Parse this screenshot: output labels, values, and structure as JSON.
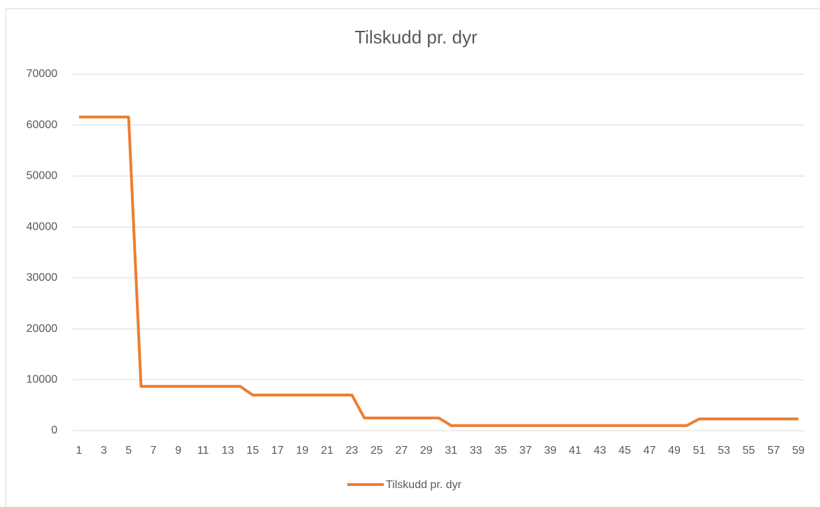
{
  "chart_data": {
    "type": "line",
    "title": "Tilskudd pr. dyr",
    "categories": [
      1,
      null,
      3,
      null,
      5,
      null,
      7,
      null,
      9,
      null,
      11,
      null,
      13,
      null,
      15,
      null,
      17,
      null,
      19,
      null,
      21,
      null,
      23,
      null,
      25,
      null,
      27,
      null,
      29,
      null,
      31,
      null,
      33,
      null,
      35,
      null,
      37,
      null,
      39,
      null,
      41,
      null,
      43,
      null,
      45,
      null,
      47,
      null,
      49,
      null,
      51,
      null,
      53,
      null,
      55,
      null,
      57,
      null,
      59
    ],
    "series": [
      {
        "name": "Tilskudd pr. dyr",
        "color": "#ed7d31",
        "values": [
          61600,
          61600,
          61600,
          61600,
          61600,
          8700,
          8700,
          8700,
          8700,
          8700,
          8700,
          8700,
          8700,
          8700,
          7000,
          7000,
          7000,
          7000,
          7000,
          7000,
          7000,
          7000,
          7000,
          2500,
          2500,
          2500,
          2500,
          2500,
          2500,
          2500,
          1000,
          1000,
          1000,
          1000,
          1000,
          1000,
          1000,
          1000,
          1000,
          1000,
          1000,
          1000,
          1000,
          1000,
          1000,
          1000,
          1000,
          1000,
          1000,
          1000,
          2300,
          2300,
          2300,
          2300,
          2300,
          2300,
          2300,
          2300,
          2300
        ]
      }
    ],
    "ylim": [
      0,
      70000
    ],
    "yticks": [
      0,
      10000,
      20000,
      30000,
      40000,
      50000,
      60000,
      70000
    ],
    "grid": true,
    "legend": "bottom"
  }
}
